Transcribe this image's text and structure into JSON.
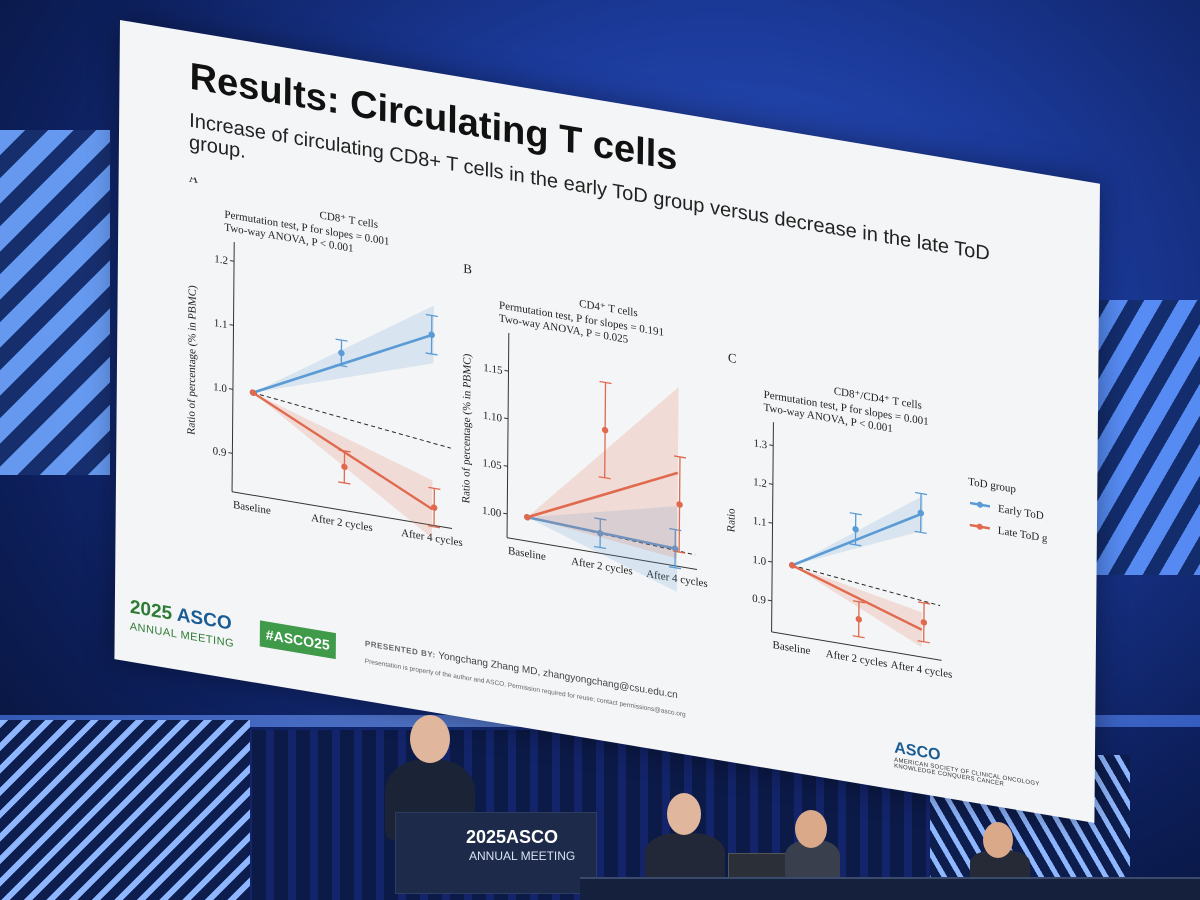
{
  "slide": {
    "title": "Results: Circulating T cells",
    "subtitle": "Increase of circulating CD8+ T cells in the early ToD group versus decrease in the late ToD group.",
    "footer": {
      "year": "2025",
      "asco": "ASCO",
      "meeting": "ANNUAL MEETING",
      "hashtag": "#ASCO25",
      "presented_label": "PRESENTED BY:",
      "presenter": "Yongchang Zhang MD, zhangyongchang@csu.edu.cn",
      "property_note": "Presentation is property of the author and ASCO. Permission required for reuse; contact permissions@asco.org",
      "logo": "ASCO",
      "logo_sub": "AMERICAN SOCIETY OF CLINICAL ONCOLOGY",
      "tagline": "KNOWLEDGE CONQUERS CANCER"
    }
  },
  "podium": {
    "year": "2025",
    "asco": "ASCO",
    "meeting": "ANNUAL MEETING"
  },
  "colors": {
    "early": "#5a9bd5",
    "late": "#e0694e"
  },
  "chart_data": [
    {
      "type": "line",
      "panel": "A",
      "title": "CD8⁺ T cells",
      "annotations": [
        "Permutation test, P for slopes = 0.001",
        "Two-way ANOVA, P < 0.001"
      ],
      "xlabel": "",
      "ylabel": "Ratio of percentage (% in PBMC)",
      "categories": [
        "Baseline",
        "After 2 cycles",
        "After 4 cycles"
      ],
      "yticks": [
        "0.9",
        "1.0",
        "1.1",
        "1.2"
      ],
      "ylim": [
        0.84,
        1.23
      ],
      "series": [
        {
          "name": "Early ToD group",
          "values": [
            1.0,
            1.085,
            1.137
          ],
          "err": [
            0,
            0.02,
            0.03
          ],
          "fit": [
            1.0,
            1.138
          ]
        },
        {
          "name": "Late ToD group",
          "values": [
            1.0,
            0.908,
            0.868
          ],
          "err": [
            0,
            0.025,
            0.03
          ],
          "fit": [
            1.0,
            0.865
          ]
        }
      ],
      "reference_line": [
        1.0,
        0.965
      ]
    },
    {
      "type": "line",
      "panel": "B",
      "title": "CD4⁺ T cells",
      "annotations": [
        "Permutation test, P for slopes = 0.191",
        "Two-way ANOVA, P = 0.025"
      ],
      "xlabel": "",
      "ylabel": "Ratio of percentage (% in PBMC)",
      "categories": [
        "Baseline",
        "After 2 cycles",
        "After 4 cycles"
      ],
      "yticks": [
        "1.00",
        "1.05",
        "1.10",
        "1.15"
      ],
      "ylim": [
        0.975,
        1.19
      ],
      "series": [
        {
          "name": "Early ToD group",
          "values": [
            1.0,
            0.996,
            0.993
          ],
          "err": [
            0,
            0.015,
            0.02
          ],
          "fit": [
            1.0,
            0.993
          ]
        },
        {
          "name": "Late ToD group",
          "values": [
            1.0,
            1.105,
            1.04
          ],
          "err": [
            0,
            0.05,
            0.05
          ],
          "fit": [
            1.0,
            1.073
          ]
        }
      ],
      "reference_line": [
        1.0,
        0.99
      ]
    },
    {
      "type": "line",
      "panel": "C",
      "title": "CD8⁺/CD4⁺ T cells",
      "annotations": [
        "Permutation test, P for slopes = 0.001",
        "Two-way ANOVA, P < 0.001"
      ],
      "xlabel": "",
      "ylabel": "Ratio",
      "categories": [
        "Baseline",
        "After 2 cycles",
        "After 4 cycles"
      ],
      "yticks": [
        "0.9",
        "1.0",
        "1.1",
        "1.2",
        "1.3"
      ],
      "ylim": [
        0.82,
        1.36
      ],
      "series": [
        {
          "name": "Early ToD group",
          "values": [
            1.0,
            1.12,
            1.19
          ],
          "err": [
            0,
            0.04,
            0.05
          ],
          "fit": [
            1.0,
            1.19
          ]
        },
        {
          "name": "Late ToD group",
          "values": [
            1.0,
            0.89,
            0.91
          ],
          "err": [
            0,
            0.045,
            0.05
          ],
          "fit": [
            1.0,
            0.89
          ]
        }
      ],
      "reference_line": [
        1.0,
        0.96
      ],
      "legend": {
        "title": "ToD group",
        "placement": "right"
      }
    }
  ]
}
